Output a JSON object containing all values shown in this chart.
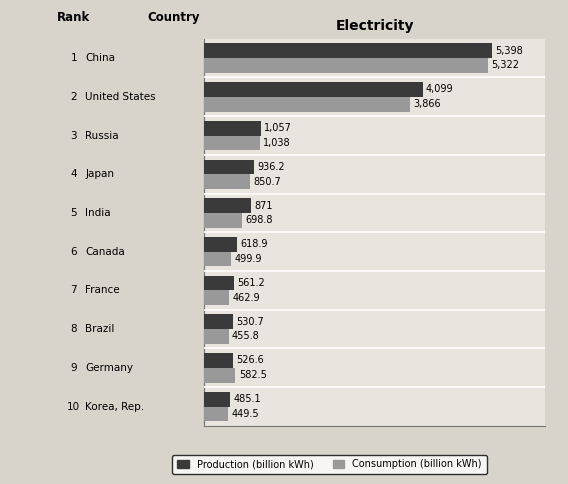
{
  "ranks": [
    "1",
    "2",
    "3",
    "4",
    "5",
    "6",
    "7",
    "8",
    "9",
    "10"
  ],
  "country_names": [
    "China",
    "United States",
    "Russia",
    "Japan",
    "India",
    "Canada",
    "France",
    "Brazil",
    "Germany",
    "Korea, Rep."
  ],
  "production": [
    5398,
    4099,
    1057,
    936.2,
    871,
    618.9,
    561.2,
    530.7,
    526.6,
    485.1
  ],
  "consumption": [
    5322,
    3866,
    1038,
    850.7,
    698.8,
    499.9,
    462.9,
    455.8,
    582.5,
    449.5
  ],
  "production_labels": [
    "5,398",
    "4,099",
    "1,057",
    "936.2",
    "871",
    "618.9",
    "561.2",
    "530.7",
    "526.6",
    "485.1"
  ],
  "consumption_labels": [
    "5,322",
    "3,866",
    "1,038",
    "850.7",
    "698.8",
    "499.9",
    "462.9",
    "455.8",
    "582.5",
    "449.5"
  ],
  "production_color": "#3a3a3a",
  "consumption_color": "#999999",
  "title": "Electricity",
  "col_header_rank": "Rank",
  "col_header_country": "Country",
  "legend_production": "Production (billion kWh)",
  "legend_consumption": "Consumption (billion kWh)",
  "page_bg_color": "#d8d4cc",
  "plot_bg_color": "#e8e5de",
  "xlim": [
    0,
    6400
  ]
}
